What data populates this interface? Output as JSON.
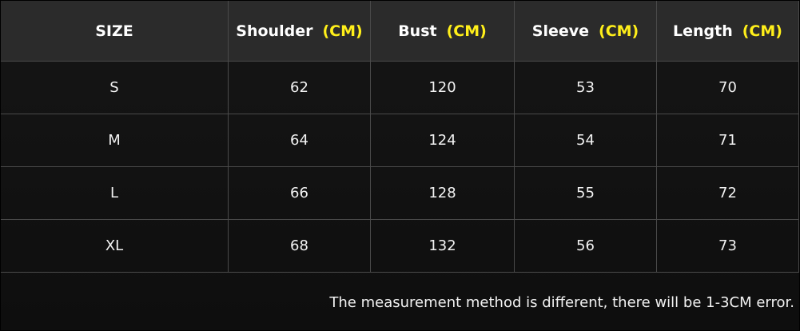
{
  "table": {
    "header": [
      {
        "label": "SIZE"
      },
      {
        "label": "Shoulder",
        "unit": "(CM)"
      },
      {
        "label": "Bust",
        "unit": "(CM)"
      },
      {
        "label": "Sleeve",
        "unit": "(CM)"
      },
      {
        "label": "Length",
        "unit": "(CM)"
      }
    ],
    "rows": [
      [
        "S",
        62,
        120,
        53,
        70
      ],
      [
        "M",
        64,
        124,
        54,
        71
      ],
      [
        "L",
        66,
        128,
        55,
        72
      ],
      [
        "XL",
        68,
        132,
        56,
        73
      ]
    ],
    "note": "The measurement method is different, there will be 1-3CM error."
  }
}
